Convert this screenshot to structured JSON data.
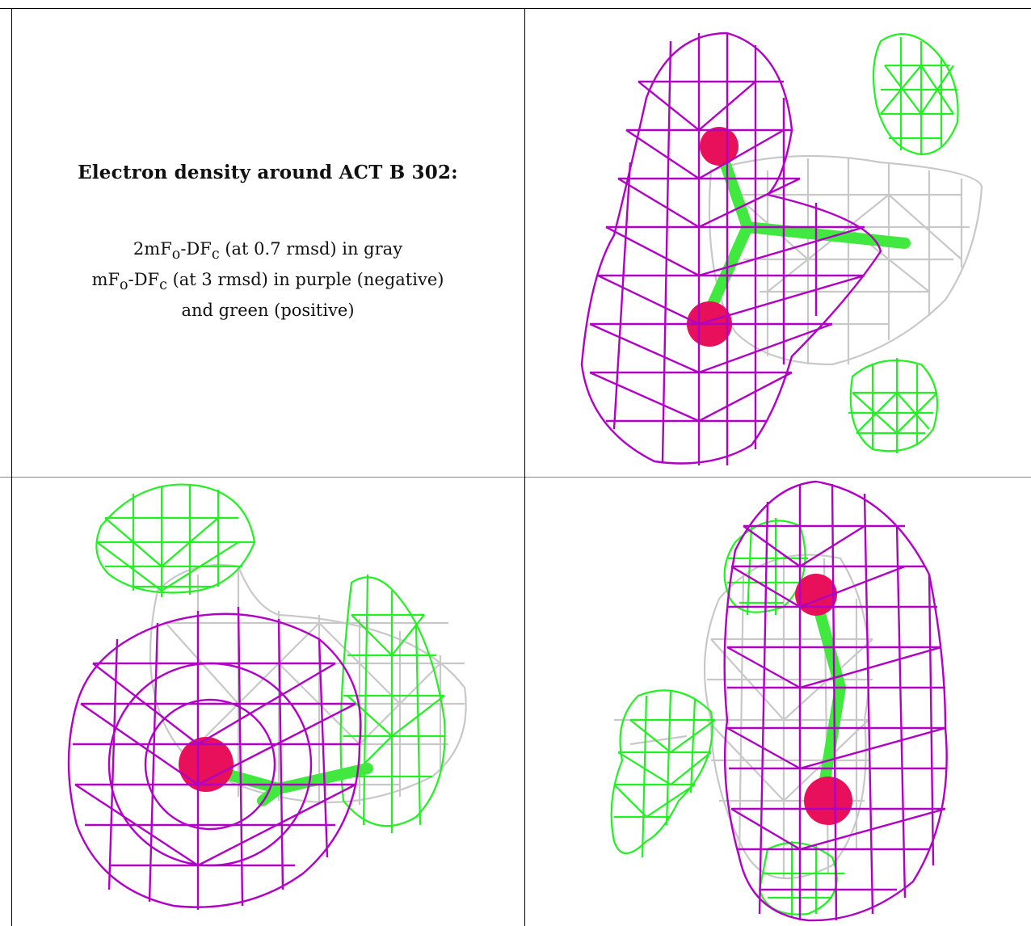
{
  "caption": {
    "title": "Electron density around ACT B 302:",
    "line1": "2mFo-DFc (at 0.7 rmsd) in gray",
    "line2": "mFo-DFc (at 3 rmsd) in purple (negative)",
    "line3": "and green (positive)"
  },
  "colors": {
    "map_2fofc": "#c8c8c8",
    "map_fofc_negative": "#b000c4",
    "map_fofc_positive": "#22f022",
    "ligand_oxygen": "#e8105a",
    "ligand_carbon": "#40e840"
  },
  "panels": [
    {
      "view": "top-right"
    },
    {
      "view": "bottom-left"
    },
    {
      "view": "bottom-right"
    }
  ]
}
